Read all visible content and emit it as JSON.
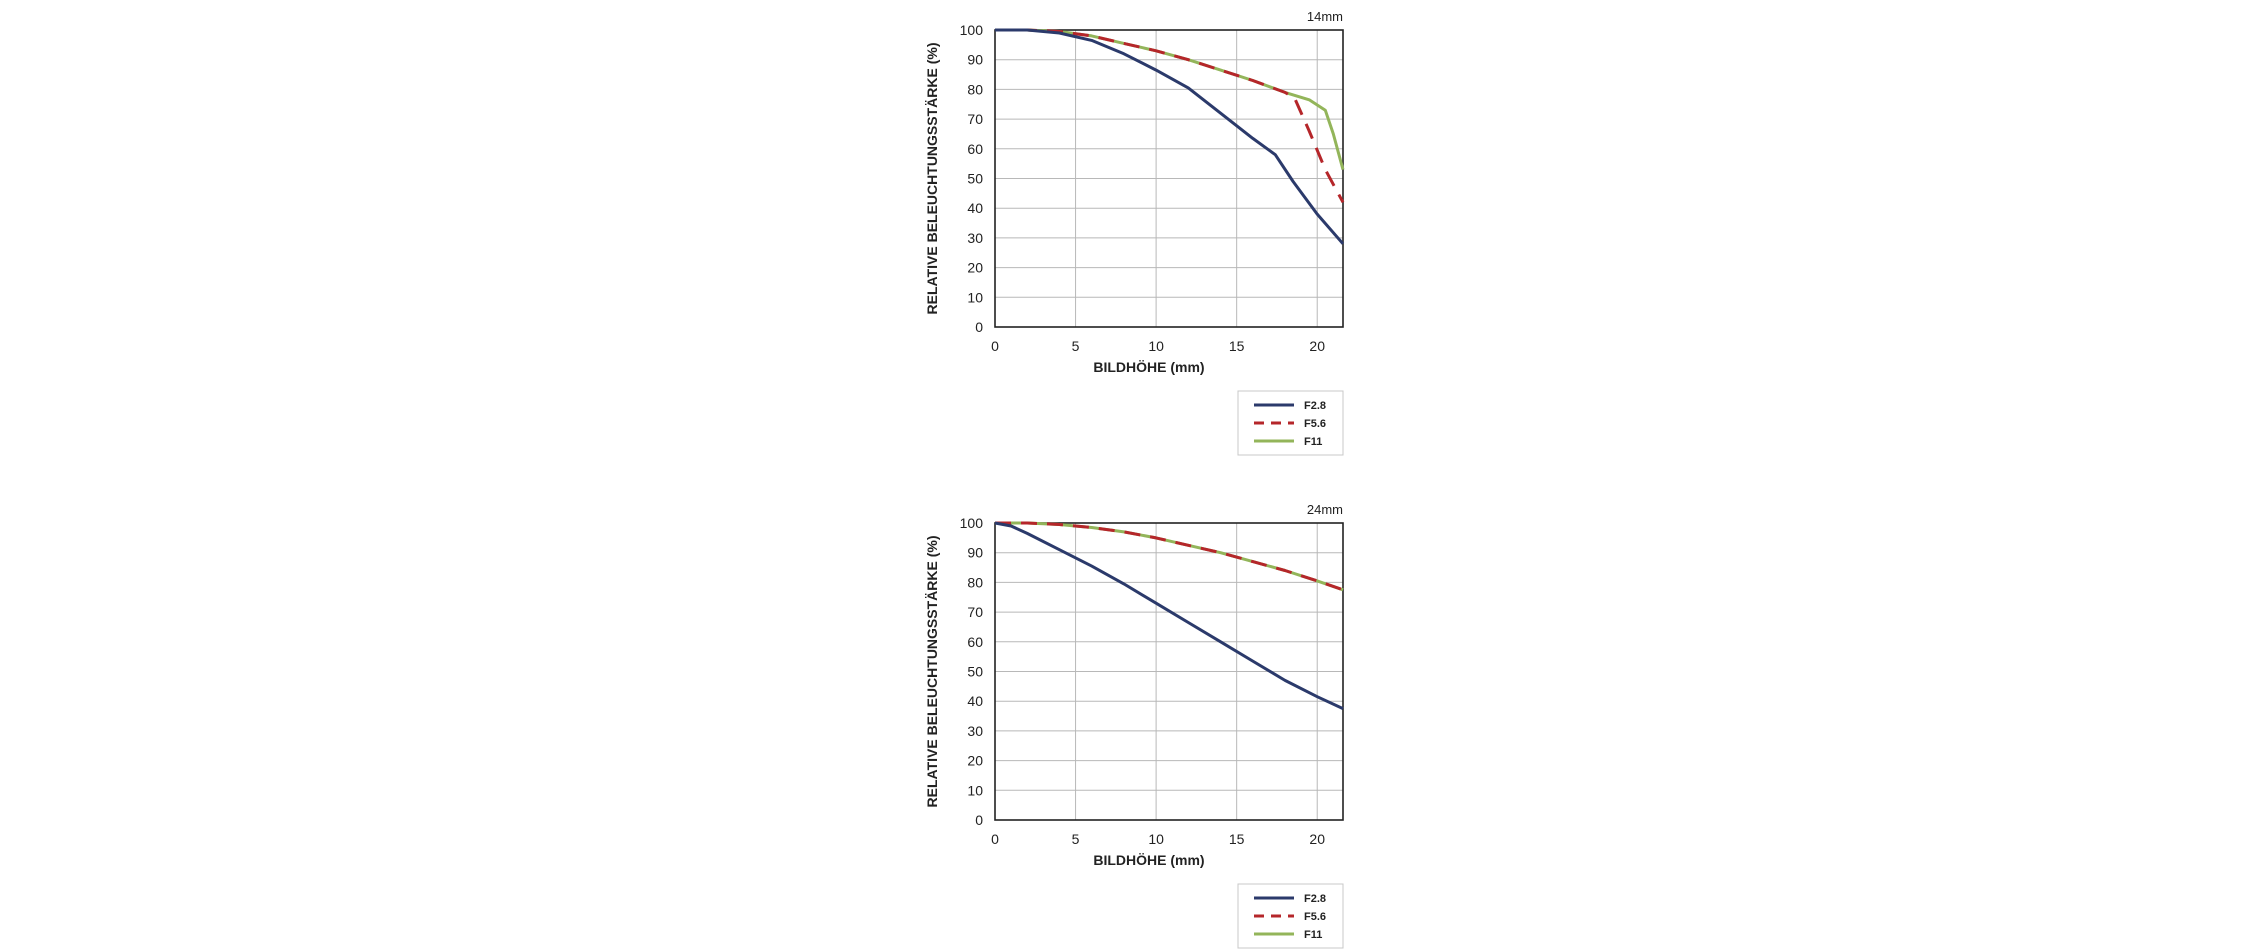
{
  "chart_data": [
    {
      "type": "line",
      "title": "14mm",
      "xlabel": "BILDHÖHE (mm)",
      "ylabel": "RELATIVE BELEUCHTUNGSSTÄRKE (%)",
      "xlim": [
        0,
        21.6
      ],
      "ylim": [
        0,
        100
      ],
      "x_ticks": [
        "0",
        "5",
        "10",
        "15",
        "20"
      ],
      "y_ticks": [
        "0",
        "10",
        "20",
        "30",
        "40",
        "50",
        "60",
        "70",
        "80",
        "90",
        "100"
      ],
      "grid": true,
      "legend_position": "below-right",
      "series": [
        {
          "name": "F2.8",
          "color": "#2b3a6b",
          "dash": "solid",
          "x": [
            0,
            2,
            4,
            6,
            8,
            10,
            12,
            14,
            16,
            17.4,
            18.5,
            20,
            21.6
          ],
          "y": [
            100,
            100,
            99,
            96.5,
            92,
            86.5,
            80.5,
            72,
            63.5,
            58,
            49,
            38,
            28
          ]
        },
        {
          "name": "F5.6",
          "color": "#b5262a",
          "dash": "dashed",
          "x": [
            0,
            2,
            4,
            6,
            8,
            10,
            12,
            14,
            16,
            18,
            18.6,
            19.5,
            20.5,
            21.6
          ],
          "y": [
            100,
            100,
            99.5,
            98,
            95.5,
            93,
            90,
            86.5,
            83,
            79,
            77,
            66,
            53,
            42
          ]
        },
        {
          "name": "F11",
          "color": "#93b55a",
          "dash": "solid",
          "x": [
            0,
            2,
            4,
            6,
            8,
            10,
            12,
            14,
            16,
            18,
            19.5,
            20.5,
            21,
            21.6
          ],
          "y": [
            100,
            100,
            99.5,
            98,
            95.5,
            93,
            90,
            86.5,
            83,
            79,
            76.5,
            73,
            65,
            53
          ]
        }
      ]
    },
    {
      "type": "line",
      "title": "24mm",
      "xlabel": "BILDHÖHE (mm)",
      "ylabel": "RELATIVE BELEUCHTUNGSSTÄRKE (%)",
      "xlim": [
        0,
        21.6
      ],
      "ylim": [
        0,
        100
      ],
      "x_ticks": [
        "0",
        "5",
        "10",
        "15",
        "20"
      ],
      "y_ticks": [
        "0",
        "10",
        "20",
        "30",
        "40",
        "50",
        "60",
        "70",
        "80",
        "90",
        "100"
      ],
      "grid": true,
      "legend_position": "below-right",
      "series": [
        {
          "name": "F2.8",
          "color": "#2b3a6b",
          "dash": "solid",
          "x": [
            0,
            1,
            2,
            4,
            6,
            8,
            10,
            12,
            14,
            16,
            18,
            20,
            21.6
          ],
          "y": [
            100,
            99,
            96.5,
            91,
            85.5,
            79.5,
            73,
            66.5,
            60,
            53.5,
            47,
            41.5,
            37.5
          ]
        },
        {
          "name": "F5.6",
          "color": "#b5262a",
          "dash": "dashed",
          "x": [
            0,
            2,
            4,
            6,
            8,
            10,
            12,
            14,
            16,
            18,
            20,
            21.6
          ],
          "y": [
            100,
            100,
            99.5,
            98.5,
            97,
            95,
            92.5,
            90,
            87,
            84,
            80.5,
            77.5
          ]
        },
        {
          "name": "F11",
          "color": "#93b55a",
          "dash": "solid",
          "x": [
            0,
            2,
            4,
            6,
            8,
            10,
            12,
            14,
            16,
            18,
            20,
            21.6
          ],
          "y": [
            100,
            100,
            99.5,
            98.5,
            97,
            95,
            92.5,
            90,
            87,
            84,
            80.5,
            77.5
          ]
        }
      ]
    }
  ]
}
